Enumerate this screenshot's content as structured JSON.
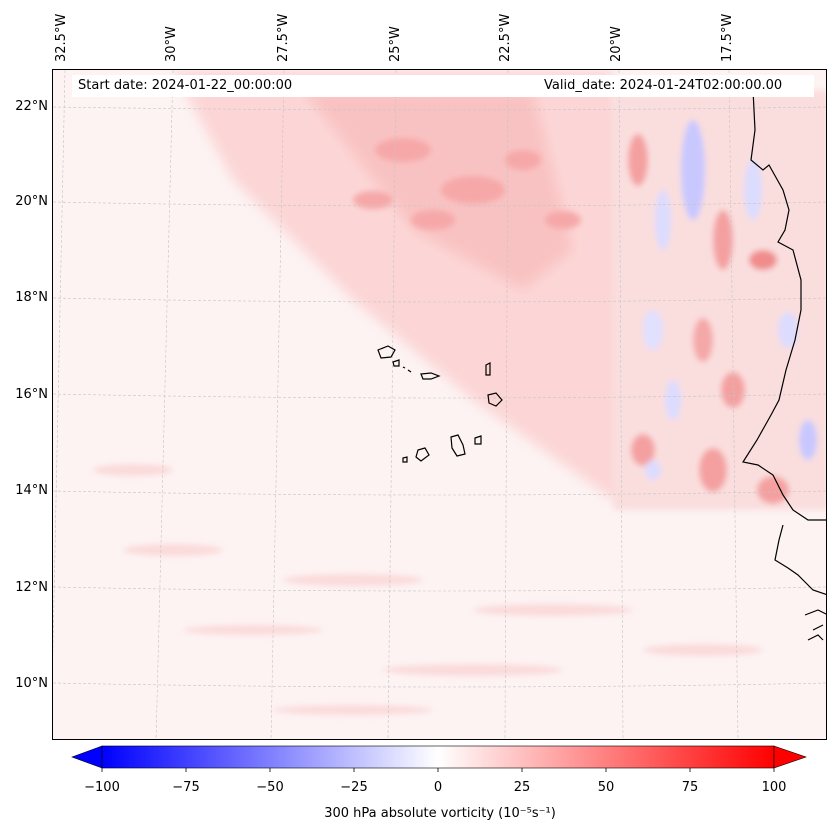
{
  "map": {
    "start_date": "Start date: 2024-01-22_00:00:00",
    "valid_date": "Valid_date: 2024-01-24T02:00:00.00",
    "lon_labels": [
      "32.5°W",
      "30°W",
      "27.5°W",
      "25°W",
      "22.5°W",
      "20°W",
      "17.5°W"
    ],
    "lat_labels": [
      "22°N",
      "20°N",
      "18°N",
      "16°N",
      "14°N",
      "12°N",
      "10°N"
    ],
    "extent": {
      "lon_min": -33.5,
      "lon_max": -16.0,
      "lat_min": 8.8,
      "lat_max": 22.8
    },
    "colors": {
      "coast": "#000000",
      "grid": "#b0b0b0",
      "high": "#ff0000",
      "low": "#0000ff",
      "mid": "#ffffff"
    }
  },
  "colorbar": {
    "label": "300 hPa absolute vorticity (10⁻⁵s⁻¹)",
    "ticks": [
      "−100",
      "−75",
      "−50",
      "−25",
      "0",
      "25",
      "50",
      "75",
      "100"
    ],
    "range": [
      -100,
      100
    ]
  }
}
